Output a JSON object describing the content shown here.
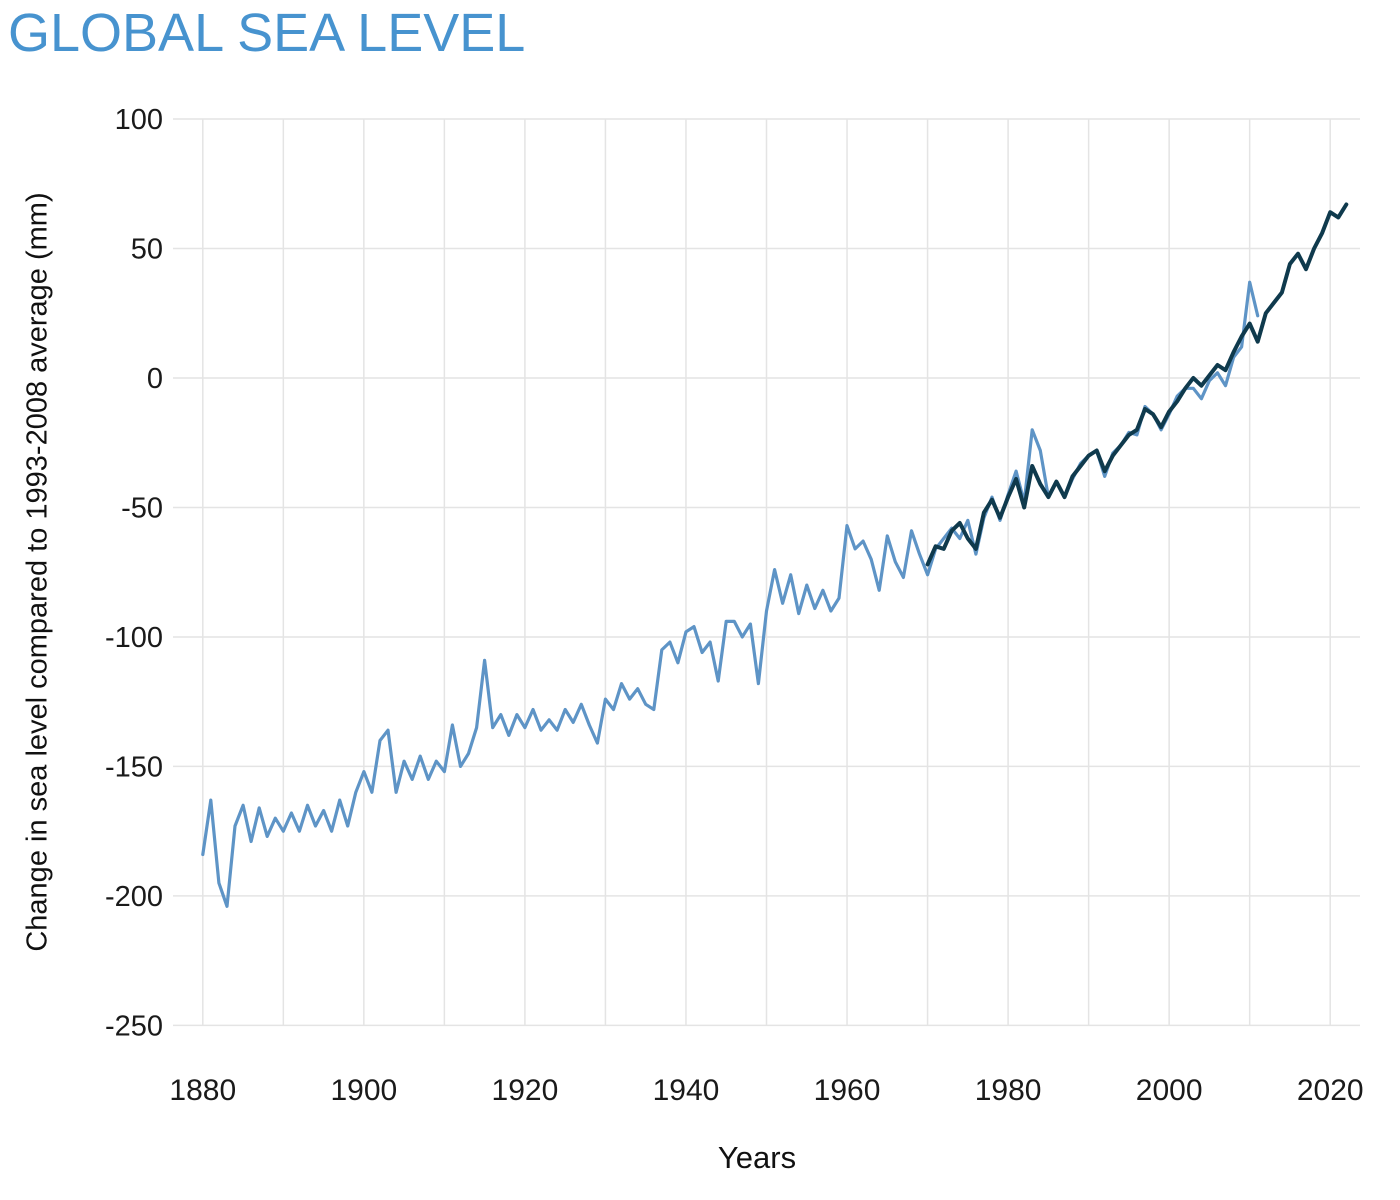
{
  "title": "GLOBAL SEA LEVEL",
  "colors": {
    "title": "#4793cf",
    "grid": "#e4e4e4",
    "tick_text": "#1a1a1a",
    "light_series": "#5e94c6",
    "dark_series": "#0f3a4d",
    "background": "#ffffff"
  },
  "chart_data": {
    "type": "line",
    "title": "GLOBAL SEA LEVEL",
    "xlabel": "Years",
    "ylabel": "Change in sea level compared to 1993-2008 average (mm)",
    "xlim": [
      1876.3,
      2023.7
    ],
    "ylim": [
      -250,
      100
    ],
    "x_ticks": [
      1880,
      1900,
      1920,
      1940,
      1960,
      1980,
      2000,
      2020
    ],
    "x_gridline_step_years": 10,
    "x_gridline_start": 1880,
    "x_gridline_end": 2020,
    "y_ticks": [
      100,
      50,
      0,
      -50,
      -100,
      -150,
      -200,
      -250
    ],
    "grid": true,
    "legend_position": "none",
    "series": [
      {
        "name": "light-blue-line",
        "color": "#5e94c6",
        "stroke_width": 3.2,
        "start_year": 1880,
        "step_years": 1,
        "values": [
          -184,
          -163,
          -195,
          -204,
          -173,
          -165,
          -179,
          -166,
          -177,
          -170,
          -175,
          -168,
          -175,
          -165,
          -173,
          -167,
          -175,
          -163,
          -173,
          -160,
          -152,
          -160,
          -140,
          -136,
          -160,
          -148,
          -155,
          -146,
          -155,
          -148,
          -152,
          -134,
          -150,
          -145,
          -135,
          -109,
          -135,
          -130,
          -138,
          -130,
          -135,
          -128,
          -136,
          -132,
          -136,
          -128,
          -133,
          -126,
          -134,
          -141,
          -124,
          -128,
          -118,
          -124,
          -120,
          -126,
          -128,
          -105,
          -102,
          -110,
          -98,
          -96,
          -106,
          -102,
          -117,
          -94,
          -94,
          -100,
          -95,
          -118,
          -90,
          -74,
          -87,
          -76,
          -91,
          -80,
          -89,
          -82,
          -90,
          -85,
          -57,
          -66,
          -63,
          -70,
          -82,
          -61,
          -71,
          -77,
          -59,
          -68,
          -76,
          -66,
          -62,
          -58,
          -62,
          -55,
          -68,
          -54,
          -46,
          -55,
          -45,
          -36,
          -48,
          -20,
          -28,
          -46,
          -40,
          -46,
          -39,
          -33,
          -30,
          -28,
          -38,
          -29,
          -26,
          -21,
          -22,
          -11,
          -14,
          -20,
          -14,
          -7,
          -4,
          -4,
          -8,
          -1,
          2,
          -3,
          8,
          12,
          37,
          24
        ]
      },
      {
        "name": "dark-blue-line",
        "color": "#0f3a4d",
        "stroke_width": 4,
        "start_year": 1970,
        "step_years": 1,
        "values": [
          -72,
          -65,
          -66,
          -59,
          -56,
          -62,
          -66,
          -52,
          -47,
          -54,
          -46,
          -39,
          -50,
          -34,
          -41,
          -46,
          -40,
          -46,
          -38,
          -34,
          -30,
          -28,
          -36,
          -30,
          -26,
          -22,
          -20,
          -12,
          -14,
          -19,
          -13,
          -9,
          -4,
          0,
          -3,
          1,
          5,
          3,
          10,
          16,
          21,
          14,
          25,
          29,
          33,
          44,
          48,
          42,
          50,
          56,
          64,
          62,
          67
        ]
      }
    ]
  }
}
